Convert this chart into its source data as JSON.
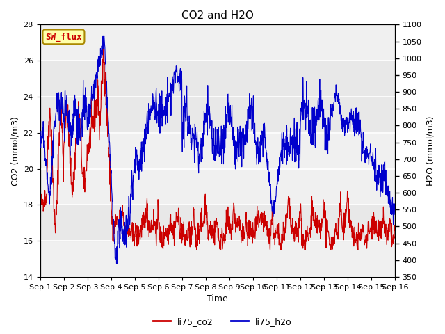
{
  "title": "CO2 and H2O",
  "xlabel": "Time",
  "ylabel_left": "CO2 (mmol/m3)",
  "ylabel_right": "H2O (mmol/m3)",
  "ylim_left": [
    14,
    28
  ],
  "ylim_right": [
    350,
    1100
  ],
  "yticks_left": [
    14,
    16,
    18,
    20,
    22,
    24,
    26,
    28
  ],
  "yticks_right": [
    350,
    400,
    450,
    500,
    550,
    600,
    650,
    700,
    750,
    800,
    850,
    900,
    950,
    1000,
    1050,
    1100
  ],
  "xtick_labels": [
    "Sep 1",
    "Sep 2",
    "Sep 3",
    "Sep 4",
    "Sep 5",
    "Sep 6",
    "Sep 7",
    "Sep 8",
    "Sep 9",
    "Sep 10",
    "Sep 11",
    "Sep 12",
    "Sep 13",
    "Sep 14",
    "Sep 15",
    "Sep 16"
  ],
  "co2_color": "#cc0000",
  "h2o_color": "#0000cc",
  "background_color": "#ffffff",
  "axes_background": "#f0f0f0",
  "band1_lo": 16,
  "band1_hi": 18,
  "band2_lo": 22,
  "band2_hi": 26,
  "band_color": "#e8e8e8",
  "sw_flux_label": "SW_flux",
  "sw_flux_bg": "#ffffaa",
  "sw_flux_border": "#aa8800",
  "sw_flux_text_color": "#cc0000",
  "legend_co2_label": "li75_co2",
  "legend_h2o_label": "li75_h2o",
  "title_fontsize": 11,
  "axis_label_fontsize": 9,
  "tick_fontsize": 8
}
